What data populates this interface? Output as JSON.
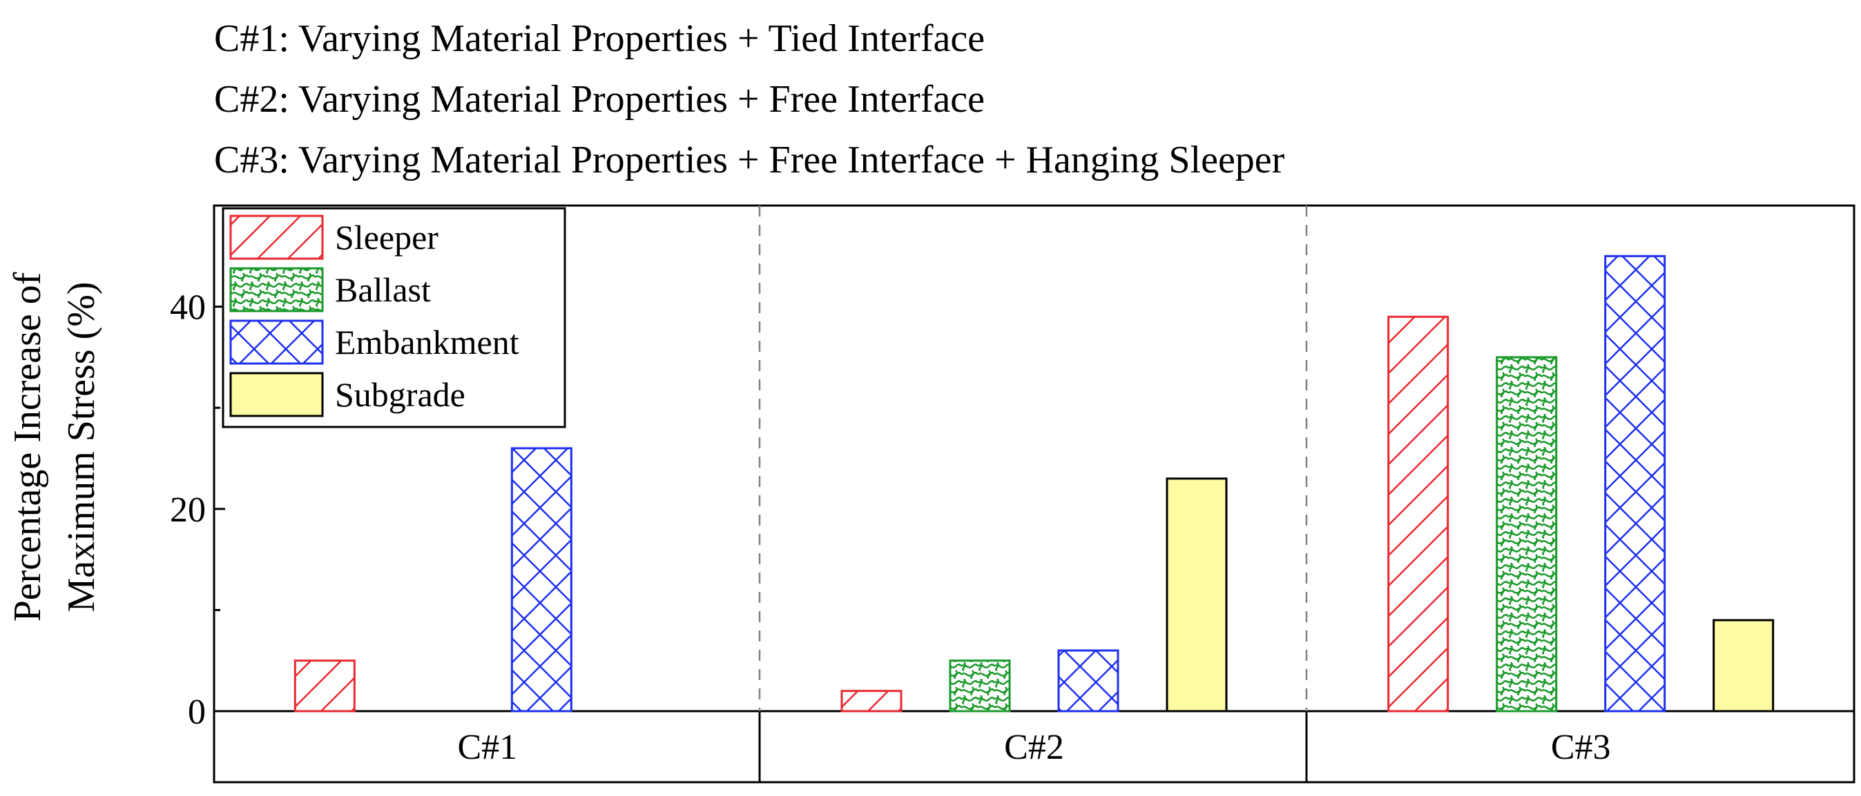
{
  "header": {
    "lines": [
      "C#1: Varying Material Properties + Tied Interface",
      "C#2: Varying Material Properties + Free Interface",
      "C#3: Varying Material Properties + Free Interface + Hanging Sleeper"
    ]
  },
  "chart_data": {
    "type": "bar",
    "title": "",
    "ylabel": "Percentage Increase of Maximum Stress (%)",
    "ylabel_lines": [
      "Percentage Increase of",
      "Maximum Stress (%)"
    ],
    "xlabel": "",
    "categories": [
      "C#1",
      "C#2",
      "C#3"
    ],
    "ylim": [
      0,
      50
    ],
    "yticks": [
      0,
      20,
      40
    ],
    "grid": false,
    "legend": "top-left",
    "series": [
      {
        "name": "Sleeper",
        "values": [
          5,
          2,
          39
        ],
        "color": "#e8292f",
        "pattern": "diagonal-hatch",
        "fill": "#ffffff"
      },
      {
        "name": "Ballast",
        "values": [
          0,
          5,
          35
        ],
        "color": "#1a9a2a",
        "pattern": "wave-hatch",
        "fill": "#ffffff"
      },
      {
        "name": "Embankment",
        "values": [
          26,
          6,
          45
        ],
        "color": "#1d2ff0",
        "pattern": "cross-hatch",
        "fill": "#ffffff"
      },
      {
        "name": "Subgrade",
        "values": [
          0,
          23,
          9
        ],
        "color": "#000000",
        "pattern": "solid",
        "fill": "#fefba3"
      }
    ]
  }
}
